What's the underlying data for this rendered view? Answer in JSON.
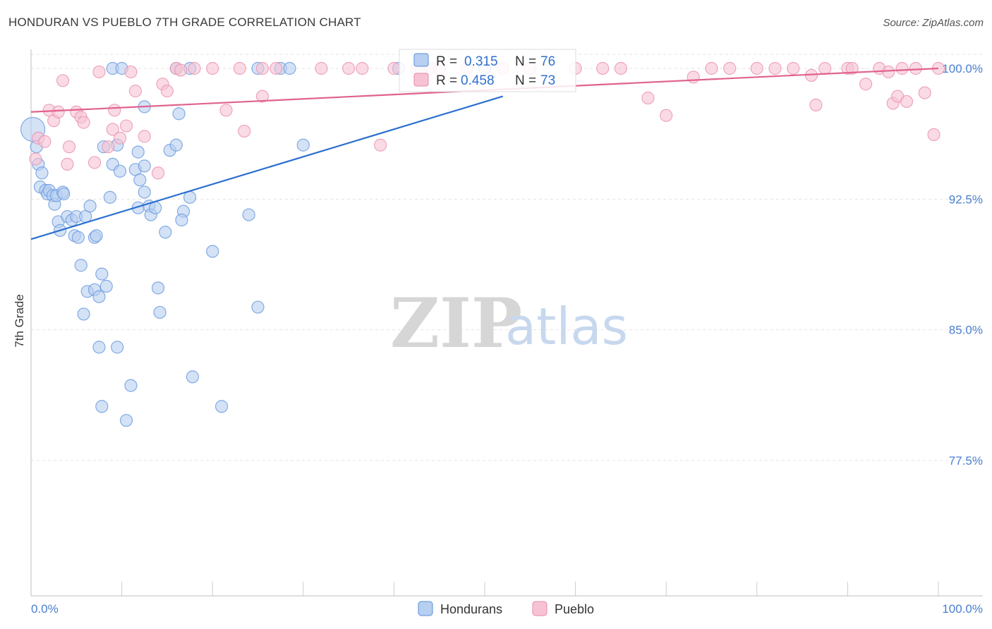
{
  "title": "HONDURAN VS PUEBLO 7TH GRADE CORRELATION CHART",
  "source": "Source: ZipAtlas.com",
  "watermark": {
    "zip": "ZIP",
    "atlas": "atlas"
  },
  "colors": {
    "hondurans": "#5b8fd9",
    "pueblo": "#e887a7",
    "blue_line": "#2b6fcf",
    "pink_line": "#e0628c"
  },
  "legend": {
    "r_label": "R =",
    "n_label": "N =",
    "hondurans": {
      "r": "0.315",
      "n": "76"
    },
    "pueblo": {
      "r": "0.458",
      "n": "73"
    }
  },
  "bottom_legend": [
    "Hondurans",
    "Pueblo"
  ],
  "chart_data": {
    "type": "scatter",
    "title": "HONDURAN VS PUEBLO 7TH GRADE CORRELATION CHART",
    "xlabel": "",
    "ylabel": "7th Grade",
    "xlim": [
      0,
      100
    ],
    "ylim": [
      70.0,
      100.7
    ],
    "x_tick_labels": [
      "0.0%",
      "100.0%"
    ],
    "y_ticks": [
      77.5,
      85.0,
      92.5,
      100.0
    ],
    "y_tick_labels": [
      "77.5%",
      "85.0%",
      "92.5%",
      "100.0%"
    ],
    "series": [
      {
        "name": "Hondurans",
        "r": 0.315,
        "n": 76,
        "trend": {
          "x": [
            0,
            52
          ],
          "y": [
            90.2,
            98.4
          ]
        },
        "points": [
          [
            0.2,
            96.5
          ],
          [
            0.6,
            95.5
          ],
          [
            0.8,
            94.5
          ],
          [
            1.2,
            94.0
          ],
          [
            1.0,
            93.2
          ],
          [
            1.6,
            93.0
          ],
          [
            1.8,
            92.8
          ],
          [
            2.0,
            93.0
          ],
          [
            2.4,
            92.7
          ],
          [
            2.6,
            92.2
          ],
          [
            2.8,
            92.7
          ],
          [
            3.5,
            92.9
          ],
          [
            3.6,
            92.8
          ],
          [
            3.0,
            91.2
          ],
          [
            3.2,
            90.7
          ],
          [
            4.0,
            91.5
          ],
          [
            4.5,
            91.3
          ],
          [
            5.0,
            91.5
          ],
          [
            4.8,
            90.4
          ],
          [
            5.2,
            90.3
          ],
          [
            6.0,
            91.5
          ],
          [
            6.5,
            92.1
          ],
          [
            7.0,
            90.3
          ],
          [
            7.2,
            90.4
          ],
          [
            5.5,
            88.7
          ],
          [
            7.8,
            88.2
          ],
          [
            8.3,
            87.5
          ],
          [
            6.2,
            87.2
          ],
          [
            7.0,
            87.3
          ],
          [
            7.5,
            86.9
          ],
          [
            5.8,
            85.9
          ],
          [
            7.5,
            84.0
          ],
          [
            9.5,
            84.0
          ],
          [
            11.0,
            81.8
          ],
          [
            7.8,
            80.6
          ],
          [
            10.5,
            79.8
          ],
          [
            8.0,
            95.5
          ],
          [
            9.0,
            94.5
          ],
          [
            9.5,
            95.6
          ],
          [
            9.8,
            94.1
          ],
          [
            8.7,
            92.6
          ],
          [
            11.5,
            94.2
          ],
          [
            11.8,
            95.2
          ],
          [
            12.5,
            94.4
          ],
          [
            12.0,
            93.6
          ],
          [
            12.5,
            92.9
          ],
          [
            11.8,
            92.0
          ],
          [
            13.0,
            92.1
          ],
          [
            13.2,
            91.6
          ],
          [
            13.7,
            92.0
          ],
          [
            14.0,
            87.4
          ],
          [
            14.2,
            86.0
          ],
          [
            14.8,
            90.6
          ],
          [
            15.3,
            95.3
          ],
          [
            16.0,
            95.6
          ],
          [
            16.3,
            97.4
          ],
          [
            12.5,
            97.8
          ],
          [
            16.8,
            91.8
          ],
          [
            16.6,
            91.3
          ],
          [
            17.5,
            92.6
          ],
          [
            17.8,
            82.3
          ],
          [
            20.0,
            89.5
          ],
          [
            21.0,
            80.6
          ],
          [
            24.0,
            91.6
          ],
          [
            25.0,
            86.3
          ],
          [
            30.0,
            95.6
          ],
          [
            9.0,
            100.0
          ],
          [
            10.0,
            100.0
          ],
          [
            16.0,
            100.0
          ],
          [
            17.5,
            100.0
          ],
          [
            25.0,
            100.0
          ],
          [
            27.5,
            100.0
          ],
          [
            28.5,
            100.0
          ],
          [
            40.5,
            100.0
          ],
          [
            43.0,
            100.0
          ],
          [
            50.0,
            100.0
          ]
        ]
      },
      {
        "name": "Pueblo",
        "r": 0.458,
        "n": 73,
        "trend": {
          "x": [
            0,
            100
          ],
          "y": [
            97.5,
            100.0
          ]
        },
        "points": [
          [
            0.5,
            94.8
          ],
          [
            0.8,
            96.0
          ],
          [
            1.5,
            95.8
          ],
          [
            2.0,
            97.6
          ],
          [
            2.5,
            97.0
          ],
          [
            3.0,
            97.5
          ],
          [
            3.5,
            99.3
          ],
          [
            4.0,
            94.5
          ],
          [
            4.2,
            95.5
          ],
          [
            5.0,
            97.5
          ],
          [
            5.5,
            97.2
          ],
          [
            5.8,
            96.9
          ],
          [
            7.0,
            94.6
          ],
          [
            7.5,
            99.8
          ],
          [
            8.5,
            95.5
          ],
          [
            9.0,
            96.5
          ],
          [
            9.2,
            97.6
          ],
          [
            9.8,
            96.0
          ],
          [
            10.5,
            96.7
          ],
          [
            11.0,
            99.8
          ],
          [
            11.5,
            98.7
          ],
          [
            12.5,
            96.1
          ],
          [
            14.0,
            94.0
          ],
          [
            14.5,
            99.1
          ],
          [
            15.0,
            98.7
          ],
          [
            16.0,
            100.0
          ],
          [
            16.5,
            99.9
          ],
          [
            18.0,
            100.0
          ],
          [
            20.0,
            100.0
          ],
          [
            21.5,
            97.6
          ],
          [
            23.0,
            100.0
          ],
          [
            23.5,
            96.4
          ],
          [
            25.5,
            98.4
          ],
          [
            25.5,
            100.0
          ],
          [
            27.0,
            100.0
          ],
          [
            32.0,
            100.0
          ],
          [
            35.0,
            100.0
          ],
          [
            36.5,
            100.0
          ],
          [
            38.5,
            95.6
          ],
          [
            40.0,
            100.0
          ],
          [
            42.5,
            100.0
          ],
          [
            44.0,
            100.0
          ],
          [
            45.0,
            100.0
          ],
          [
            48.0,
            100.0
          ],
          [
            52.0,
            100.0
          ],
          [
            55.0,
            100.0
          ],
          [
            60.0,
            100.0
          ],
          [
            63.0,
            100.0
          ],
          [
            65.0,
            100.0
          ],
          [
            68.0,
            98.3
          ],
          [
            70.0,
            97.3
          ],
          [
            73.0,
            99.5
          ],
          [
            75.0,
            100.0
          ],
          [
            77.0,
            100.0
          ],
          [
            80.0,
            100.0
          ],
          [
            82.0,
            100.0
          ],
          [
            84.0,
            100.0
          ],
          [
            86.0,
            99.6
          ],
          [
            86.5,
            97.9
          ],
          [
            87.5,
            100.0
          ],
          [
            90.0,
            100.0
          ],
          [
            90.5,
            100.0
          ],
          [
            92.0,
            99.1
          ],
          [
            93.5,
            100.0
          ],
          [
            94.5,
            99.8
          ],
          [
            95.0,
            98.0
          ],
          [
            96.0,
            100.0
          ],
          [
            97.5,
            100.0
          ],
          [
            98.5,
            98.6
          ],
          [
            99.5,
            96.2
          ],
          [
            100.0,
            100.0
          ],
          [
            95.5,
            98.4
          ],
          [
            96.5,
            98.1
          ]
        ]
      }
    ]
  }
}
